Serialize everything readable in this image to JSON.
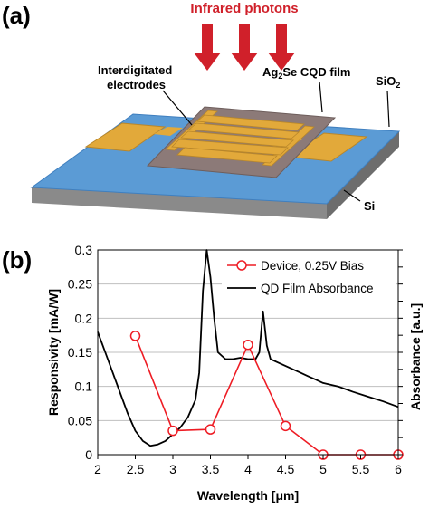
{
  "panel_a": {
    "label": "(a)",
    "arrow_label": "Infrared photons",
    "electrodes_label_line1": "Interdigitated",
    "electrodes_label_line2": "electrodes",
    "film_label": "Ag",
    "film_label_sub": "2",
    "film_label_rest": "Se CQD film",
    "sio2_label": "SiO",
    "sio2_sub": "2",
    "si_label": "Si",
    "colors": {
      "arrow": "#d0202a",
      "substrate_top": "#5b9bd5",
      "si": "#7f7f7f",
      "film": "#8c7a78",
      "gold": "#e2a93a"
    }
  },
  "panel_b": {
    "label": "(b)"
  },
  "chart_data": {
    "type": "line",
    "xlabel": "Wavelength [μm]",
    "ylabel": "Responsivity [mA/W]",
    "y2label": "Absorbance [a.u.]",
    "xlim": [
      2,
      6
    ],
    "ylim": [
      0,
      0.3
    ],
    "x_ticks": [
      "2",
      "2.5",
      "3",
      "3.5",
      "4",
      "4.5",
      "5",
      "5.5",
      "6"
    ],
    "y_ticks": [
      "0",
      "0.05",
      "0.1",
      "0.15",
      "0.2",
      "0.25",
      "0.3"
    ],
    "legend_position": "top-right",
    "series": [
      {
        "name": "Device, 0.25V Bias",
        "color": "#ee1c24",
        "marker": "open-circle",
        "axis": "left",
        "x": [
          2.5,
          3.0,
          3.5,
          4.0,
          4.5,
          5.0,
          5.5,
          6.0
        ],
        "values": [
          0.174,
          0.035,
          0.037,
          0.161,
          0.042,
          0.0,
          0.0,
          0.0
        ]
      },
      {
        "name": "QD Film Absorbance",
        "color": "#000000",
        "axis": "right",
        "x": [
          2.0,
          2.1,
          2.2,
          2.3,
          2.4,
          2.5,
          2.6,
          2.7,
          2.8,
          2.9,
          3.0,
          3.1,
          3.2,
          3.3,
          3.35,
          3.4,
          3.45,
          3.5,
          3.55,
          3.6,
          3.7,
          3.8,
          3.9,
          4.0,
          4.1,
          4.15,
          4.2,
          4.25,
          4.3,
          4.4,
          4.5,
          4.6,
          4.7,
          4.8,
          4.9,
          5.0,
          5.2,
          5.4,
          5.6,
          5.8,
          6.0
        ],
        "values": [
          0.18,
          0.15,
          0.12,
          0.09,
          0.06,
          0.035,
          0.02,
          0.013,
          0.015,
          0.02,
          0.03,
          0.04,
          0.055,
          0.08,
          0.12,
          0.24,
          0.3,
          0.26,
          0.2,
          0.15,
          0.14,
          0.14,
          0.142,
          0.14,
          0.14,
          0.15,
          0.21,
          0.16,
          0.14,
          0.135,
          0.13,
          0.125,
          0.12,
          0.115,
          0.11,
          0.105,
          0.1,
          0.092,
          0.085,
          0.078,
          0.07
        ]
      }
    ]
  }
}
